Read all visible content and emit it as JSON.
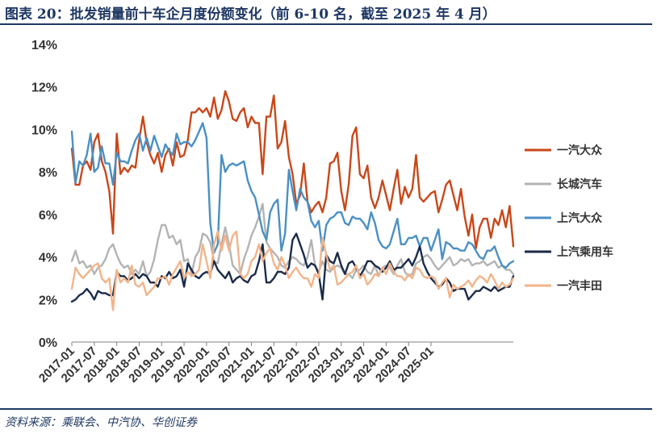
{
  "title": "图表 20：批发销量前十车企月度份额变化（前 6-10 名，截至 2025 年 4 月）",
  "source": "资料来源：乘联会、中汽协、华创证券",
  "chart_data": {
    "type": "line",
    "title": "批发销量前十车企月度份额变化（前 6-10 名，截至 2025 年 4 月）",
    "xlabel": "",
    "ylabel": "",
    "ylim": [
      0,
      14
    ],
    "yticks": [
      "0%",
      "2%",
      "4%",
      "6%",
      "8%",
      "10%",
      "12%",
      "14%"
    ],
    "xticks": [
      "2017-01",
      "2017-07",
      "2018-01",
      "2018-07",
      "2019-01",
      "2019-07",
      "2020-01",
      "2020-07",
      "2021-01",
      "2021-07",
      "2022-01",
      "2022-07",
      "2023-01",
      "2023-07",
      "2024-01",
      "2024-07",
      "2025-01"
    ],
    "x_start": "2017-01",
    "x_end": "2025-04",
    "legend_position": "right",
    "series": [
      {
        "name": "一汽大众",
        "color": "#c9471a",
        "values": [
          9.1,
          7.4,
          7.4,
          8.3,
          8.5,
          8.1,
          9.4,
          9.8,
          8.5,
          8.0,
          7.1,
          5.1,
          9.8,
          7.9,
          8.2,
          8.0,
          8.3,
          8.2,
          9.5,
          10.6,
          9.4,
          8.8,
          8.4,
          8.9,
          8.0,
          8.8,
          9.1,
          8.3,
          9.4,
          8.7,
          8.8,
          9.5,
          10.8,
          10.8,
          11.0,
          10.8,
          11.0,
          10.6,
          11.5,
          10.5,
          10.9,
          11.8,
          11.3,
          10.5,
          10.4,
          10.8,
          11.0,
          10.1,
          10.6,
          10.3,
          10.3,
          7.9,
          10.6,
          10.6,
          11.6,
          9.1,
          9.4,
          10.4,
          8.7,
          7.9,
          6.5,
          6.9,
          8.4,
          6.6,
          6.1,
          6.4,
          6.6,
          6.1,
          6.8,
          8.4,
          8.5,
          8.9,
          7.1,
          6.2,
          7.4,
          9.7,
          10.1,
          7.9,
          7.7,
          8.3,
          6.8,
          6.3,
          6.8,
          7.6,
          6.9,
          6.2,
          7.2,
          8.1,
          6.5,
          7.3,
          6.8,
          7.2,
          8.8,
          6.8,
          6.6,
          6.8,
          7.0,
          7.1,
          6.1,
          6.7,
          7.4,
          7.6,
          6.9,
          6.2,
          7.2,
          5.9,
          5.0,
          6.0,
          4.4,
          5.4,
          5.8,
          5.8,
          4.9,
          5.8,
          5.5,
          6.2,
          5.4,
          6.4,
          4.5
        ]
      },
      {
        "name": "长城汽车",
        "color": "#b3b3b3",
        "values": [
          3.8,
          4.3,
          3.7,
          3.8,
          3.5,
          3.6,
          3.2,
          3.5,
          3.6,
          3.9,
          4.4,
          4.6,
          4.1,
          3.7,
          3.5,
          3.6,
          3.2,
          3.4,
          3.2,
          3.8,
          3.1,
          3.3,
          3.9,
          4.8,
          5.5,
          5.5,
          4.9,
          5.0,
          4.6,
          4.8,
          3.8,
          3.9,
          3.2,
          4.0,
          4.3,
          5.1,
          5.0,
          4.7,
          3.8,
          3.7,
          4.6,
          5.4,
          4.6,
          3.6,
          3.4,
          3.2,
          3.9,
          4.4,
          5.0,
          5.4,
          5.9,
          6.5,
          4.7,
          4.4,
          4.2,
          4.0,
          3.6,
          3.5,
          3.8,
          4.0,
          3.9,
          3.7,
          3.6,
          4.0,
          4.8,
          3.6,
          3.3,
          3.8,
          3.4,
          3.3,
          3.5,
          3.6,
          3.5,
          3.2,
          3.2,
          3.0,
          3.4,
          3.4,
          3.6,
          3.3,
          3.2,
          3.6,
          3.1,
          3.5,
          3.6,
          3.5,
          3.2,
          3.6,
          3.9,
          3.3,
          3.1,
          3.2,
          3.7,
          3.8,
          4.0,
          4.1,
          3.9,
          3.6,
          3.4,
          3.6,
          3.8,
          4.0,
          3.6,
          3.7,
          3.9,
          3.8,
          3.9,
          3.6,
          3.7,
          3.7,
          3.8,
          3.6,
          3.7,
          3.8,
          3.5,
          3.6,
          3.4,
          3.4,
          3.2
        ]
      },
      {
        "name": "上汽大众",
        "color": "#4a90c4",
        "values": [
          9.9,
          7.5,
          8.5,
          8.3,
          8.8,
          9.8,
          8.0,
          8.2,
          9.2,
          8.4,
          8.4,
          7.4,
          8.9,
          8.5,
          8.5,
          8.4,
          9.0,
          9.5,
          9.8,
          9.0,
          9.6,
          9.0,
          9.7,
          9.2,
          8.7,
          9.3,
          9.0,
          8.8,
          9.8,
          9.3,
          9.4,
          9.4,
          9.2,
          9.5,
          9.9,
          10.3,
          9.6,
          5.6,
          4.2,
          4.6,
          8.8,
          8.0,
          8.3,
          8.4,
          8.3,
          8.4,
          8.5,
          7.6,
          7.1,
          6.8,
          6.0,
          5.2,
          4.8,
          6.1,
          6.5,
          6.7,
          4.3,
          5.1,
          8.1,
          7.1,
          6.2,
          7.2,
          6.8,
          6.6,
          5.7,
          5.4,
          5.7,
          4.3,
          5.5,
          5.8,
          5.9,
          6.1,
          6.1,
          5.6,
          5.5,
          5.9,
          5.8,
          5.8,
          5.6,
          5.3,
          6.1,
          5.6,
          4.8,
          4.5,
          4.4,
          4.6,
          5.2,
          5.8,
          4.6,
          4.6,
          4.9,
          4.9,
          5.0,
          4.5,
          4.9,
          4.9,
          4.3,
          4.8,
          5.3,
          3.9,
          4.7,
          4.6,
          4.4,
          4.4,
          4.3,
          4.3,
          4.7,
          4.6,
          4.3,
          4.0,
          3.9,
          4.3,
          4.3,
          4.5,
          4.0,
          3.6,
          3.5,
          3.7,
          3.8
        ]
      },
      {
        "name": "上汽乘用车",
        "color": "#1a2b4a",
        "values": [
          1.9,
          2.0,
          2.2,
          2.3,
          2.5,
          2.3,
          2.0,
          2.4,
          2.3,
          2.3,
          2.2,
          2.2,
          3.3,
          3.1,
          3.1,
          2.9,
          3.0,
          3.2,
          3.0,
          3.2,
          3.1,
          2.8,
          2.8,
          2.6,
          3.1,
          3.0,
          3.3,
          3.0,
          3.1,
          3.4,
          2.6,
          3.7,
          3.4,
          3.1,
          3.0,
          3.2,
          3.3,
          3.2,
          3.8,
          3.4,
          3.2,
          3.0,
          3.3,
          2.8,
          3.0,
          3.1,
          2.9,
          2.8,
          3.1,
          3.2,
          3.8,
          4.6,
          2.8,
          2.8,
          3.0,
          3.3,
          3.3,
          3.2,
          3.5,
          4.8,
          5.1,
          4.6,
          4.1,
          3.5,
          3.7,
          3.6,
          3.2,
          2.0,
          4.1,
          3.8,
          3.7,
          4.2,
          3.6,
          3.2,
          3.7,
          3.8,
          3.5,
          3.1,
          3.4,
          3.8,
          3.8,
          3.6,
          3.5,
          3.3,
          3.5,
          3.8,
          3.4,
          3.5,
          3.5,
          3.7,
          3.9,
          3.6,
          4.0,
          4.5,
          3.7,
          3.3,
          3.0,
          2.8,
          2.6,
          2.7,
          3.0,
          2.8,
          2.4,
          2.5,
          2.5,
          2.5,
          2.0,
          2.2,
          2.4,
          2.4,
          2.6,
          2.5,
          2.4,
          2.6,
          2.4,
          2.5,
          2.6,
          2.6,
          3.1
        ]
      },
      {
        "name": "一汽丰田",
        "color": "#f2b48a",
        "values": [
          2.5,
          3.5,
          3.2,
          3.0,
          3.2,
          3.4,
          3.6,
          3.7,
          3.0,
          2.8,
          3.0,
          1.5,
          3.4,
          2.8,
          3.0,
          2.8,
          3.6,
          2.7,
          2.6,
          2.8,
          2.2,
          2.4,
          2.6,
          3.0,
          3.0,
          3.1,
          2.7,
          3.2,
          3.5,
          3.8,
          3.0,
          3.3,
          3.1,
          3.2,
          3.4,
          4.6,
          3.8,
          3.0,
          4.6,
          5.2,
          4.3,
          5.0,
          4.3,
          5.0,
          5.2,
          3.2,
          3.0,
          3.2,
          3.8,
          4.0,
          4.6,
          3.8,
          4.2,
          4.4,
          3.7,
          3.4,
          4.0,
          3.6,
          3.0,
          3.3,
          3.5,
          3.2,
          3.0,
          3.0,
          2.6,
          3.2,
          3.0,
          4.9,
          4.1,
          3.4,
          3.6,
          2.7,
          2.8,
          3.0,
          3.2,
          3.3,
          3.6,
          3.0,
          3.2,
          2.7,
          2.9,
          3.2,
          3.1,
          3.5,
          3.2,
          3.7,
          3.3,
          3.1,
          3.1,
          2.9,
          3.2,
          3.0,
          3.5,
          3.4,
          3.1,
          3.0,
          3.1,
          3.0,
          2.5,
          2.8,
          3.0,
          2.1,
          2.7,
          2.5,
          2.6,
          2.7,
          2.9,
          2.6,
          2.9,
          3.1,
          3.0,
          2.8,
          3.2,
          2.9,
          2.5,
          2.8,
          2.6,
          2.7,
          3.0
        ]
      }
    ]
  }
}
